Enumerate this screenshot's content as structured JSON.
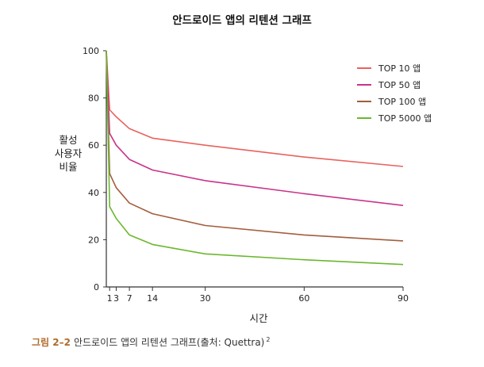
{
  "chart_data": {
    "type": "line",
    "title": "안드로이드 앱의 리텐션 그래프",
    "xlabel": "시간",
    "ylabel": [
      "활성",
      "사용자",
      "비율"
    ],
    "xlim": [
      0,
      90
    ],
    "ylim": [
      0,
      100
    ],
    "xticks": [
      1,
      3,
      7,
      14,
      30,
      60,
      90
    ],
    "yticks": [
      0,
      20,
      40,
      60,
      80,
      100
    ],
    "grid": false,
    "legend_position": "top-right",
    "series": [
      {
        "name": "TOP 10 앱",
        "color": "#e8625e",
        "points": [
          [
            0,
            100
          ],
          [
            1,
            75
          ],
          [
            3,
            72
          ],
          [
            7,
            67
          ],
          [
            14,
            63
          ],
          [
            30,
            60
          ],
          [
            60,
            55
          ],
          [
            90,
            51
          ]
        ]
      },
      {
        "name": "TOP 50 앱",
        "color": "#c8338a",
        "points": [
          [
            0,
            100
          ],
          [
            1,
            65
          ],
          [
            3,
            60
          ],
          [
            7,
            54
          ],
          [
            14,
            49.5
          ],
          [
            30,
            45
          ],
          [
            60,
            39.5
          ],
          [
            90,
            34.5
          ]
        ]
      },
      {
        "name": "TOP 100 앱",
        "color": "#a35d3d",
        "points": [
          [
            0,
            100
          ],
          [
            1,
            48
          ],
          [
            3,
            42
          ],
          [
            7,
            35.5
          ],
          [
            14,
            31
          ],
          [
            30,
            26
          ],
          [
            60,
            22
          ],
          [
            90,
            19.5
          ]
        ]
      },
      {
        "name": "TOP 5000 앱",
        "color": "#6ab82e",
        "points": [
          [
            0,
            100
          ],
          [
            1,
            34
          ],
          [
            3,
            29
          ],
          [
            7,
            22
          ],
          [
            14,
            18
          ],
          [
            30,
            14
          ],
          [
            60,
            11.5
          ],
          [
            90,
            9.5
          ]
        ]
      }
    ]
  },
  "caption": {
    "number": "그림 2–2",
    "text": "안드로이드 앱의 리텐션 그래프(출처: Quettra)",
    "footnote": "2"
  }
}
